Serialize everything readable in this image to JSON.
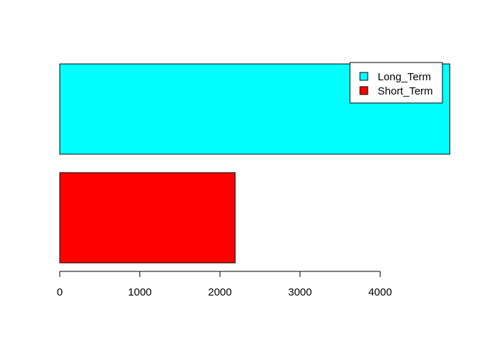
{
  "chart_data": {
    "type": "bar",
    "orientation": "horizontal",
    "categories": [
      "Short_Term",
      "Long_Term"
    ],
    "values": [
      2190,
      4870
    ],
    "colors": [
      "#ff0000",
      "#00ffff"
    ],
    "xlim": [
      0,
      4870
    ],
    "xticks": [
      0,
      1000,
      2000,
      3000,
      4000
    ],
    "xtick_labels": [
      "0",
      "1000",
      "2000",
      "3000",
      "4000"
    ],
    "title": "",
    "xlabel": "",
    "ylabel": "",
    "grid": false,
    "legend": {
      "position": "top-right",
      "entries": [
        {
          "label": "Long_Term",
          "color": "#00ffff"
        },
        {
          "label": "Short_Term",
          "color": "#ff0000"
        }
      ]
    }
  }
}
